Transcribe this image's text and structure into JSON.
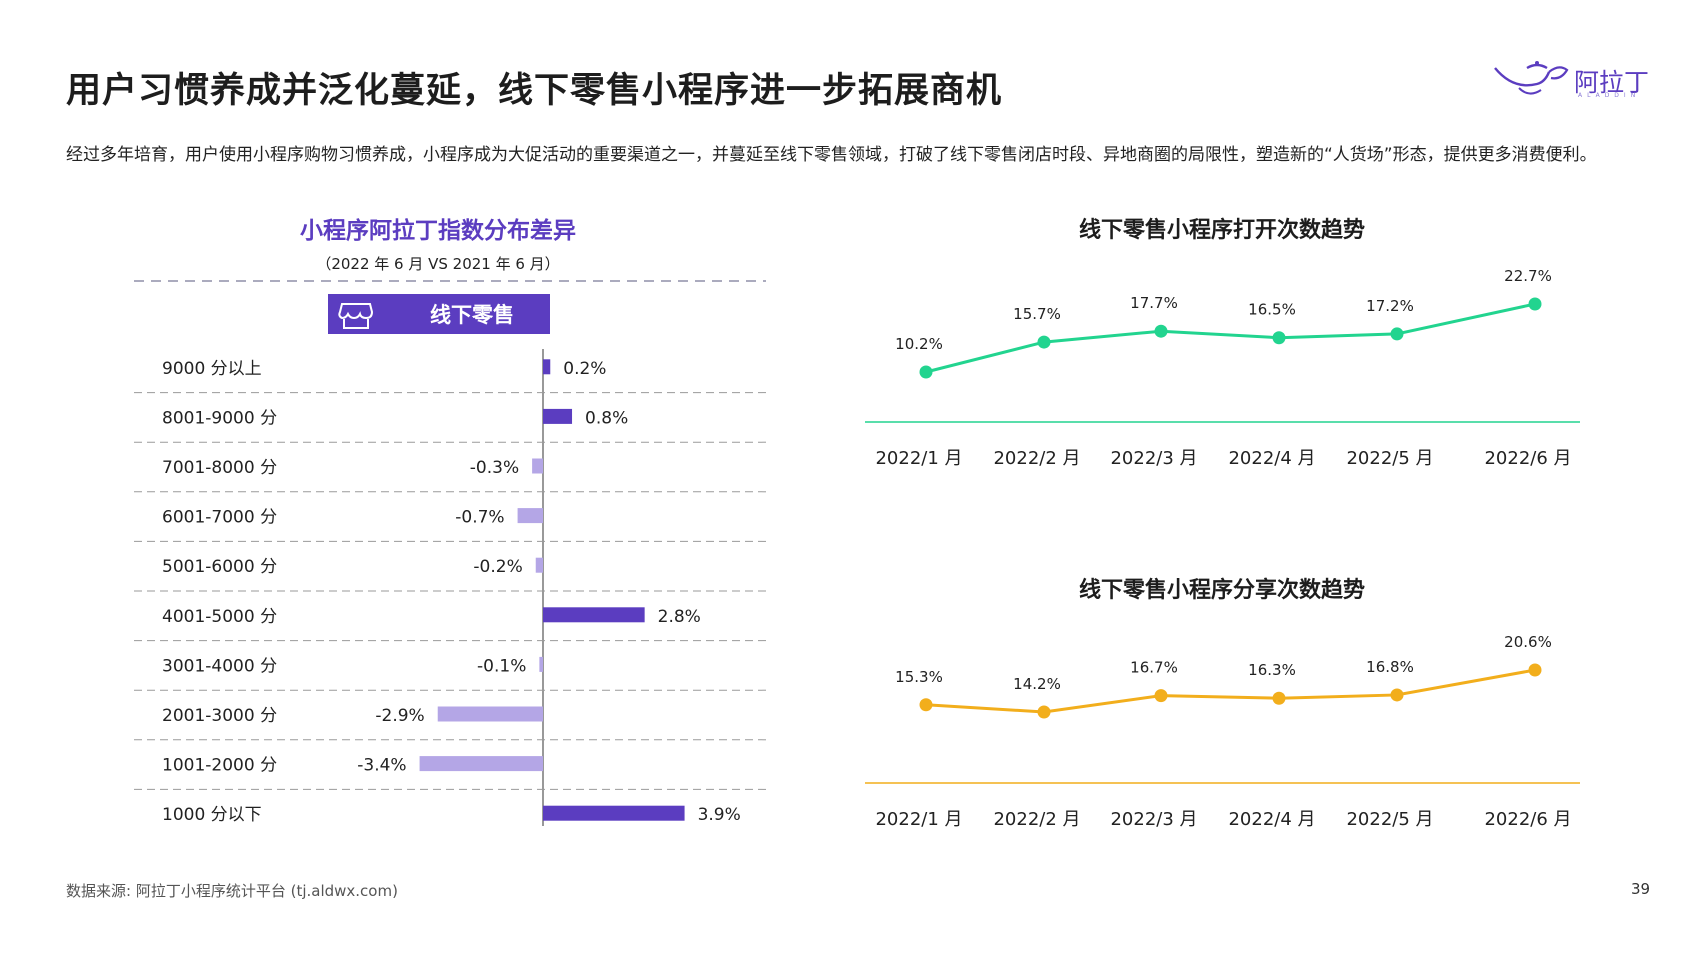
{
  "header": {
    "title": "用户习惯养成并泛化蔓延，线下零售小程序进一步拓展商机",
    "logo_text": "阿拉丁",
    "logo_sub": "ALADDIN"
  },
  "intro": "经过多年培育，用户使用小程序购物习惯养成，小程序成为大促活动的重要渠道之一，并蔓延至线下零售领域，打破了线下零售闭店时段、异地商圈的局限性，塑造新的“人货场”形态，提供更多消费便利。",
  "footer": {
    "source": "数据来源: 阿拉丁小程序统计平台 (tj.aldwx.com)",
    "page": "39"
  },
  "colors": {
    "purple_dark": "#5b3dc0",
    "purple_light": "#b4a6e6",
    "green": "#22d48f",
    "orange": "#f2ae1c"
  },
  "chart_data": [
    {
      "type": "bar",
      "orientation": "horizontal",
      "title": "小程序阿拉丁指数分布差异",
      "subtitle": "（2022 年 6 月 VS 2021 年 6 月）",
      "series": [
        {
          "name": "线下零售",
          "values": [
            0.2,
            0.8,
            -0.3,
            -0.7,
            -0.2,
            2.8,
            -0.1,
            -2.9,
            -3.4,
            3.9
          ]
        }
      ],
      "categories": [
        "9000 分以上",
        "8001-9000 分",
        "7001-8000 分",
        "6001-7000 分",
        "5001-6000 分",
        "4001-5000 分",
        "3001-4000 分",
        "2001-3000 分",
        "1001-2000 分",
        "1000 分以下"
      ],
      "value_labels": [
        "0.2%",
        "0.8%",
        "-0.3%",
        "-0.7%",
        "-0.2%",
        "2.8%",
        "-0.1%",
        "-2.9%",
        "-3.4%",
        "3.9%"
      ],
      "legend_icon": "store-icon"
    },
    {
      "type": "line",
      "title": "线下零售小程序打开次数趋势",
      "categories": [
        "2022/1 月",
        "2022/2 月",
        "2022/3 月",
        "2022/4 月",
        "2022/5 月",
        "2022/6 月"
      ],
      "values": [
        10.2,
        15.7,
        17.7,
        16.5,
        17.2,
        22.7
      ],
      "value_labels": [
        "10.2%",
        "15.7%",
        "17.7%",
        "16.5%",
        "17.2%",
        "22.7%"
      ],
      "color": "#22d48f"
    },
    {
      "type": "line",
      "title": "线下零售小程序分享次数趋势",
      "categories": [
        "2022/1 月",
        "2022/2 月",
        "2022/3 月",
        "2022/4 月",
        "2022/5 月",
        "2022/6 月"
      ],
      "values": [
        15.3,
        14.2,
        16.7,
        16.3,
        16.8,
        20.6
      ],
      "value_labels": [
        "15.3%",
        "14.2%",
        "16.7%",
        "16.3%",
        "16.8%",
        "20.6%"
      ],
      "color": "#f2ae1c"
    }
  ]
}
